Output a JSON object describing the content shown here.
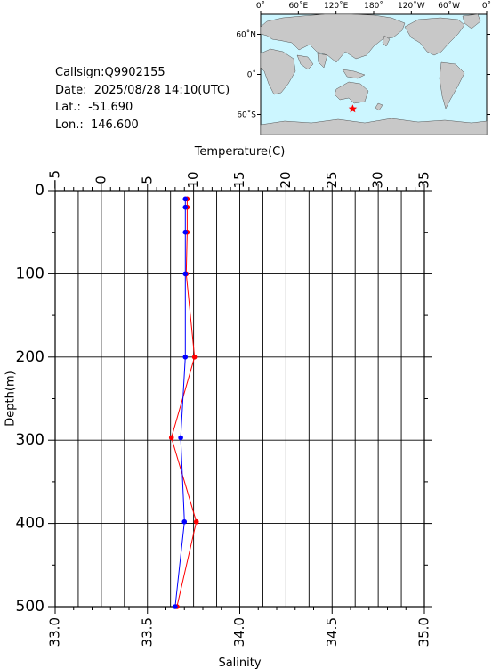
{
  "station": {
    "callsign": "Callsign:Q9902155",
    "date": "Date:  2025/08/28 14:10(UTC)",
    "lat": "Lat.:  -51.690",
    "lon": "Lon.:  146.600"
  },
  "map": {
    "lon_labels": [
      "0˚",
      "60˚E",
      "120˚E",
      "180˚",
      "120˚W",
      "60˚W",
      "0˚"
    ],
    "lat_labels": [
      "60˚N",
      "0˚",
      "60˚S"
    ],
    "marker": {
      "lon": 146.6,
      "lat": -51.69,
      "color": "#ff0000",
      "symbol": "star"
    },
    "ocean_color": "#ccf6ff",
    "land_color": "#c8c8c8"
  },
  "chart_data": {
    "type": "line",
    "ylabel": "Depth(m)",
    "ylim": [
      0,
      500
    ],
    "y_ticks": [
      "0",
      "100",
      "200",
      "300",
      "400",
      "500"
    ],
    "top_axis": {
      "label": "Temperature(C)",
      "lim": [
        -5,
        35
      ],
      "ticks": [
        "−5",
        "0",
        "5",
        "10",
        "15",
        "20",
        "25",
        "30",
        "35"
      ]
    },
    "bottom_axis": {
      "label": "Salinity",
      "lim": [
        33.0,
        35.0
      ],
      "ticks": [
        "33.0",
        "33.5",
        "34.0",
        "34.5",
        "35.0"
      ]
    },
    "grid": true,
    "series": [
      {
        "axis": "temperature",
        "color": "#ff0000",
        "depth": [
          10,
          20,
          50,
          100,
          200,
          297,
          398,
          500
        ],
        "values": [
          9.3,
          9.3,
          9.3,
          9.2,
          10.1,
          7.6,
          10.3,
          8.2
        ]
      },
      {
        "axis": "salinity",
        "color": "#0000ff",
        "depth": [
          10,
          20,
          50,
          100,
          200,
          297,
          398,
          500
        ],
        "values": [
          33.705,
          33.705,
          33.705,
          33.705,
          33.705,
          33.68,
          33.7,
          33.65
        ]
      }
    ]
  }
}
